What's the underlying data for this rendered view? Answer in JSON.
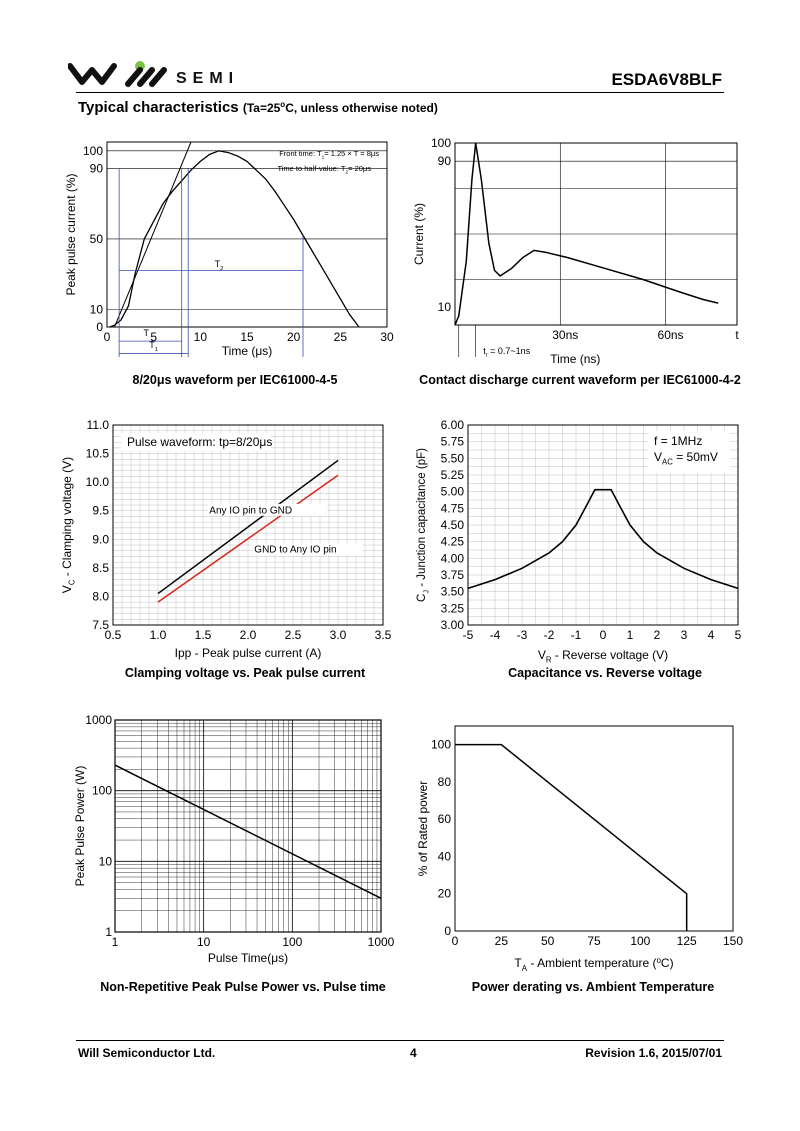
{
  "header": {
    "brand": "SEMI",
    "part_number": "ESDA6V8BLF",
    "section_title": "Typical characteristics",
    "section_condition_pre": "(Ta=25",
    "section_condition_deg": "o",
    "section_condition_post": "C, unless otherwise noted)"
  },
  "captions": {
    "c1": "8/20μs waveform per IEC61000-4-5",
    "c2": "Contact discharge current waveform per IEC61000-4-2",
    "c3": "Clamping voltage vs. Peak pulse current",
    "c4": "Capacitance vs. Reverse voltage",
    "c5": "Non-Repetitive Peak Pulse Power vs. Pulse time",
    "c6": "Power derating vs. Ambient Temperature"
  },
  "footer": {
    "company": "Will Semiconductor Ltd.",
    "page": "4",
    "revision": "Revision 1.6, 2015/07/01"
  },
  "colors": {
    "red_series": "#d8241b",
    "blue_markers": "#3b4fb3",
    "grid": "#b0b0b0"
  },
  "chart_data": [
    {
      "id": "waveform_8_20",
      "type": "line",
      "xlabel": "Time (μs)",
      "ylabel": "Peak pulse current (%)",
      "xlim": [
        0,
        30
      ],
      "ylim": [
        0,
        105
      ],
      "x_ticks": [
        "0",
        "5",
        "10",
        "15",
        "20",
        "25",
        "30"
      ],
      "y_ticks": [
        "0",
        "10",
        "50",
        "90",
        "100"
      ],
      "annotations": {
        "front_pre": "Front time: T",
        "front_sub": "1",
        "front_post": "= 1.25 × T = 8μs",
        "half_pre": "Time to half-value: T",
        "half_sub": "2",
        "half_post": "= 20μs",
        "t_label": "T",
        "t1_label": "T",
        "t1_sub": "1",
        "t2_label": "T",
        "t2_sub": "2"
      },
      "series": [
        {
          "values": [
            [
              0.3,
              0
            ],
            [
              0.8,
              1
            ],
            [
              1.5,
              4
            ],
            [
              2.3,
              12
            ],
            [
              3,
              30
            ],
            [
              4,
              50
            ],
            [
              5,
              60
            ],
            [
              6,
              70
            ],
            [
              7,
              77
            ],
            [
              8,
              83
            ],
            [
              9,
              89
            ],
            [
              10,
              94
            ],
            [
              11,
              98
            ],
            [
              12,
              100
            ],
            [
              13,
              99
            ],
            [
              14,
              97
            ],
            [
              15,
              94
            ],
            [
              16,
              89
            ],
            [
              17,
              84
            ],
            [
              18,
              77
            ],
            [
              19,
              69
            ],
            [
              20,
              61
            ],
            [
              21,
              52
            ],
            [
              22,
              43
            ],
            [
              23,
              34
            ],
            [
              24,
              25
            ],
            [
              25,
              16
            ],
            [
              26,
              7
            ],
            [
              27,
              0
            ]
          ]
        }
      ]
    },
    {
      "id": "contact_discharge",
      "type": "line",
      "xlabel": "Time (ns)",
      "ylabel": "Current (%)",
      "xlim": [
        0,
        75
      ],
      "ylim": [
        0,
        100
      ],
      "x_ticks": [
        "30ns",
        "60ns",
        "t"
      ],
      "y_ticks": [
        "10",
        "90",
        "100"
      ],
      "annotations": {
        "tr_pre": "t",
        "tr_sub": "r",
        "tr_post": " = 0.7~1ns"
      },
      "series": [
        {
          "values": [
            [
              0,
              0
            ],
            [
              1,
              5
            ],
            [
              3,
              35
            ],
            [
              4.5,
              80
            ],
            [
              5.5,
              100
            ],
            [
              7,
              80
            ],
            [
              9,
              45
            ],
            [
              10.5,
              30
            ],
            [
              12,
              27
            ],
            [
              15,
              31
            ],
            [
              18,
              37
            ],
            [
              21,
              41
            ],
            [
              24,
              40
            ],
            [
              30,
              37
            ],
            [
              40,
              31
            ],
            [
              50,
              25
            ],
            [
              60,
              18
            ],
            [
              66,
              14
            ],
            [
              70,
              12
            ]
          ]
        }
      ]
    },
    {
      "id": "clamping_voltage",
      "type": "line",
      "xlabel": "Ipp - Peak pulse current (A)",
      "ylabel_pre": "V",
      "ylabel_sub": "C",
      "ylabel_post": " - Clamping voltage (V)",
      "xlim": [
        0.5,
        3.5
      ],
      "ylim": [
        7.5,
        11.0
      ],
      "x_ticks": [
        "0.5",
        "1.0",
        "1.5",
        "2.0",
        "2.5",
        "3.0",
        "3.5"
      ],
      "y_ticks": [
        "7.5",
        "8.0",
        "8.5",
        "9.0",
        "9.5",
        "10.0",
        "10.5",
        "11.0"
      ],
      "legend_text": "Pulse waveform: tp=8/20μs",
      "series": [
        {
          "name": "Any IO pin to GND",
          "x": [
            1.0,
            3.0
          ],
          "y": [
            8.05,
            10.38
          ]
        },
        {
          "name": "GND to Any IO pin",
          "x": [
            1.0,
            3.0
          ],
          "y": [
            7.9,
            10.12
          ]
        }
      ]
    },
    {
      "id": "capacitance",
      "type": "line",
      "xlabel_pre": "V",
      "xlabel_sub": "R",
      "xlabel_post": " - Reverse voltage (V)",
      "ylabel_pre": "C",
      "ylabel_sub": "J",
      "ylabel_post": " - Junction capacitance (pF)",
      "xlim": [
        -5,
        5
      ],
      "ylim": [
        3.0,
        6.0
      ],
      "x_ticks": [
        "-5",
        "-4",
        "-3",
        "-2",
        "-1",
        "0",
        "1",
        "2",
        "3",
        "4",
        "5"
      ],
      "y_ticks": [
        "3.00",
        "3.25",
        "3.50",
        "3.75",
        "4.00",
        "4.25",
        "4.50",
        "4.75",
        "5.00",
        "5.25",
        "5.50",
        "5.75",
        "6.00"
      ],
      "legend_freq": "f = 1MHz",
      "legend_vac_pre": "V",
      "legend_vac_sub": "AC",
      "legend_vac_post": " = 50mV",
      "series": [
        {
          "values": [
            [
              -5,
              3.55
            ],
            [
              -4,
              3.68
            ],
            [
              -3,
              3.85
            ],
            [
              -2,
              4.08
            ],
            [
              -1.5,
              4.25
            ],
            [
              -1,
              4.5
            ],
            [
              -0.6,
              4.8
            ],
            [
              -0.3,
              5.03
            ],
            [
              0.3,
              5.03
            ],
            [
              0.6,
              4.8
            ],
            [
              1,
              4.5
            ],
            [
              1.5,
              4.25
            ],
            [
              2,
              4.08
            ],
            [
              3,
              3.85
            ],
            [
              4,
              3.68
            ],
            [
              5,
              3.55
            ]
          ]
        }
      ]
    },
    {
      "id": "peak_pulse_power",
      "type": "line",
      "xlabel": "Pulse Time(μs)",
      "ylabel": "Peak Pulse Power (W)",
      "x_scale": "log",
      "y_scale": "log",
      "xlim": [
        1,
        1000
      ],
      "ylim": [
        1,
        1000
      ],
      "x_ticks": [
        "1",
        "10",
        "100",
        "1000"
      ],
      "y_ticks": [
        "1",
        "10",
        "100",
        "1000"
      ],
      "series": [
        {
          "x": [
            1,
            1000
          ],
          "y": [
            230,
            3
          ]
        }
      ]
    },
    {
      "id": "power_derating",
      "type": "line",
      "xlabel_pre": "T",
      "xlabel_sub": "A",
      "xlabel_mid": " - Ambient temperature (",
      "xlabel_deg": "o",
      "xlabel_post": "C)",
      "ylabel": "% of Rated power",
      "xlim": [
        0,
        150
      ],
      "ylim": [
        0,
        110
      ],
      "x_ticks": [
        "0",
        "25",
        "50",
        "75",
        "100",
        "125",
        "150"
      ],
      "y_ticks": [
        "0",
        "20",
        "40",
        "60",
        "80",
        "100"
      ],
      "series": [
        {
          "x": [
            0,
            25,
            125,
            125
          ],
          "y": [
            100,
            100,
            20,
            0
          ]
        }
      ]
    }
  ]
}
